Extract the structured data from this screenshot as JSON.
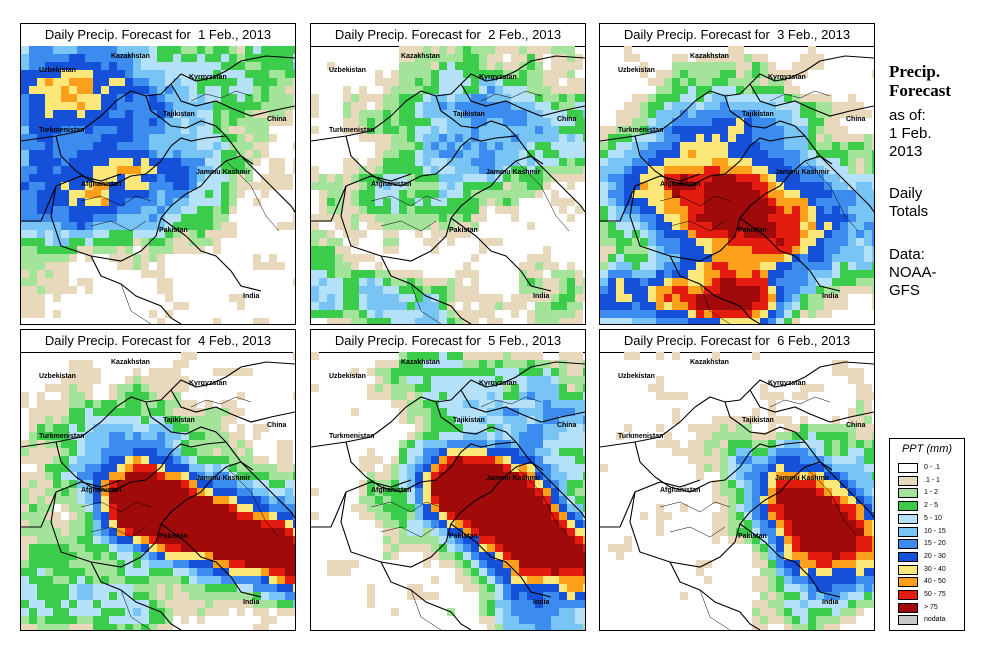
{
  "figure": {
    "panels": [
      {
        "title": "Daily Precip. Forecast for  1 Feb., 2013",
        "day": 1
      },
      {
        "title": "Daily Precip. Forecast for  2 Feb., 2013",
        "day": 2
      },
      {
        "title": "Daily Precip. Forecast for  3 Feb., 2013",
        "day": 3
      },
      {
        "title": "Daily Precip. Forecast for  4 Feb., 2013",
        "day": 4
      },
      {
        "title": "Daily Precip. Forecast for  5 Feb., 2013",
        "day": 5
      },
      {
        "title": "Daily Precip. Forecast for  6 Feb., 2013",
        "day": 6
      }
    ],
    "map_labels": {
      "kazakhstan": "Kazakhstan",
      "uzbekistan": "Uzbekistan",
      "kyrgyzstan": "Kyrgyzstan",
      "tajikistan": "Tajikistan",
      "turkmenistan": "Turkmenistan",
      "china": "China",
      "afghanistan": "Afghanistan",
      "jammu_kashmir": "Jammu Kashmir",
      "pakistan": "Pakistan",
      "india": "India"
    },
    "side": {
      "title_line1": "Precip.",
      "title_line2": "Forecast",
      "asof_line1": "as of:",
      "asof_line2": "1 Feb.",
      "asof_line3": "2013",
      "totals_line1": "Daily",
      "totals_line2": "Totals",
      "data_line1": "Data:",
      "data_line2": "NOAA-",
      "data_line3": "GFS"
    },
    "legend": {
      "title": "PPT (mm)",
      "items": [
        {
          "label": "0 - .1",
          "color": "#ffffff"
        },
        {
          "label": ".1 - 1",
          "color": "#e8d8bc"
        },
        {
          "label": "1 - 2",
          "color": "#a4e49a"
        },
        {
          "label": "2 - 5",
          "color": "#3ccc4c"
        },
        {
          "label": "5 - 10",
          "color": "#b4e0f8"
        },
        {
          "label": "10 - 15",
          "color": "#78c4f4"
        },
        {
          "label": "15 - 20",
          "color": "#3c8cf0"
        },
        {
          "label": "20 - 30",
          "color": "#1450d8"
        },
        {
          "label": "30 - 40",
          "color": "#fce878"
        },
        {
          "label": "40 - 50",
          "color": "#fca01c"
        },
        {
          "label": "50 - 75",
          "color": "#e41c10"
        },
        {
          "label": "> 75",
          "color": "#a00a0a"
        },
        {
          "label": "nodata",
          "color": "#c8c8c8"
        }
      ]
    }
  }
}
